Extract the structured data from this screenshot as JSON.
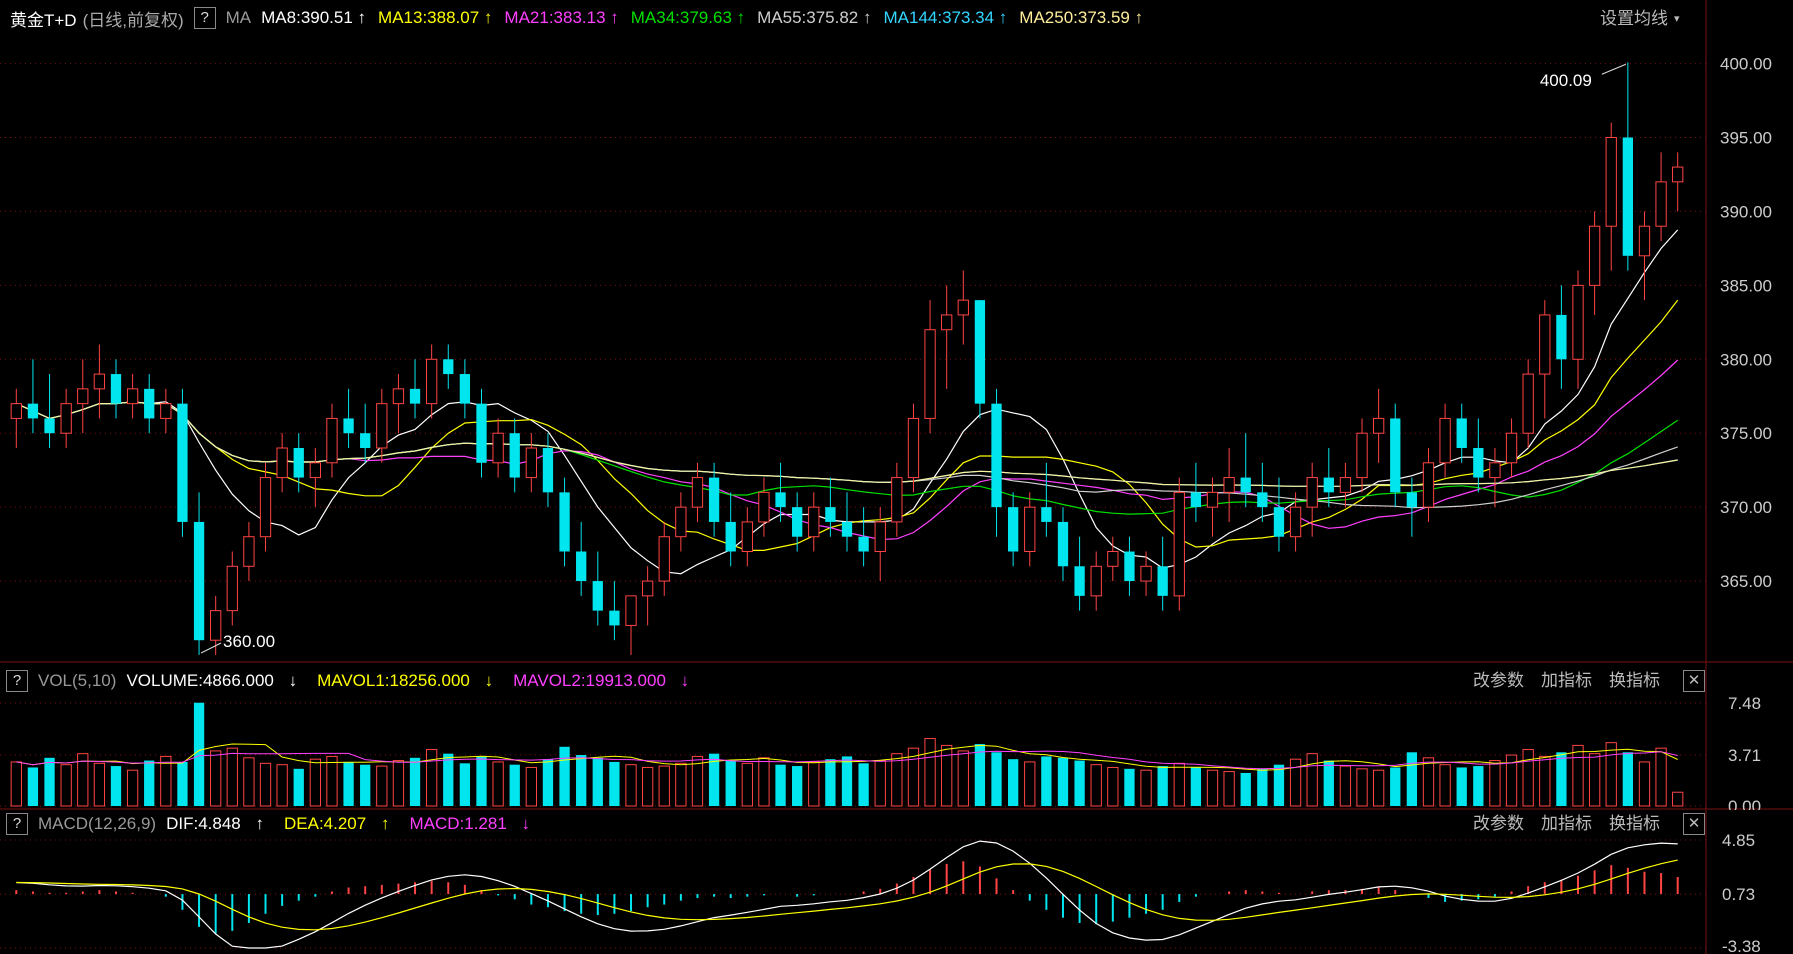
{
  "title": "黄金T+D",
  "subtitle": "(日线,前复权)",
  "ma_label": "MA",
  "ma_values": [
    {
      "name": "MA8",
      "value": "390.51",
      "arrow": "↑",
      "color": "#ffffff"
    },
    {
      "name": "MA13",
      "value": "388.07",
      "arrow": "↑",
      "color": "#ffff00"
    },
    {
      "name": "MA21",
      "value": "383.13",
      "arrow": "↑",
      "color": "#ff40ff"
    },
    {
      "name": "MA34",
      "value": "379.63",
      "arrow": "↑",
      "color": "#00e000"
    },
    {
      "name": "MA55",
      "value": "375.82",
      "arrow": "↑",
      "color": "#cfcfcf"
    },
    {
      "name": "MA144",
      "value": "373.34",
      "arrow": "↑",
      "color": "#33d6ff"
    },
    {
      "name": "MA250",
      "value": "373.59",
      "arrow": "↑",
      "color": "#ffef99"
    }
  ],
  "settings_label": "设置均线",
  "help_icon": "?",
  "vol_header": {
    "label": "VOL(5,10)",
    "volume": "VOLUME:4866.000",
    "vol_arrow": "↓",
    "mavol1": "MAVOL1:18256.000",
    "mavol1_arrow": "↓",
    "mavol2": "MAVOL2:19913.000",
    "mavol2_arrow": "↓"
  },
  "macd_header": {
    "label": "MACD(12,26,9)",
    "dif": "DIF:4.848",
    "dif_arrow": "↑",
    "dea": "DEA:4.207",
    "dea_arrow": "↑",
    "macd": "MACD:1.281",
    "macd_arrow": "↓"
  },
  "buttons": {
    "params": "改参数",
    "add": "加指标",
    "switch": "换指标",
    "close": "✕"
  },
  "colors": {
    "up": "#ff4444",
    "down": "#00e5ee",
    "background": "#000000",
    "grid": "#7a1111"
  },
  "chart_data": [
    {
      "type": "candlestick",
      "ylim": [
        360,
        402
      ],
      "yticks": [
        "400.00",
        "395.00",
        "390.00",
        "385.00",
        "380.00",
        "375.00",
        "370.00",
        "365.00"
      ],
      "annotations": [
        {
          "text": "400.09",
          "kind": "high"
        },
        {
          "text": "360.00",
          "kind": "low"
        }
      ],
      "ohlc": [
        [
          376,
          378,
          374,
          377
        ],
        [
          377,
          380,
          375,
          376
        ],
        [
          376,
          379,
          374,
          375
        ],
        [
          375,
          378,
          374,
          377
        ],
        [
          377,
          380,
          375,
          378
        ],
        [
          378,
          381,
          376,
          379
        ],
        [
          379,
          380,
          376,
          377
        ],
        [
          377,
          379,
          376,
          378
        ],
        [
          378,
          379,
          375,
          376
        ],
        [
          376,
          378,
          375,
          377
        ],
        [
          377,
          378,
          368,
          369
        ],
        [
          369,
          371,
          360,
          361
        ],
        [
          361,
          364,
          360,
          363
        ],
        [
          363,
          367,
          362,
          366
        ],
        [
          366,
          369,
          365,
          368
        ],
        [
          368,
          373,
          367,
          372
        ],
        [
          372,
          375,
          371,
          374
        ],
        [
          374,
          375,
          371,
          372
        ],
        [
          372,
          374,
          370,
          373
        ],
        [
          373,
          377,
          372,
          376
        ],
        [
          376,
          378,
          374,
          375
        ],
        [
          375,
          377,
          373,
          374
        ],
        [
          374,
          378,
          373,
          377
        ],
        [
          377,
          379,
          375,
          378
        ],
        [
          378,
          380,
          376,
          377
        ],
        [
          377,
          381,
          376,
          380
        ],
        [
          380,
          381,
          378,
          379
        ],
        [
          379,
          380,
          376,
          377
        ],
        [
          377,
          378,
          372,
          373
        ],
        [
          373,
          376,
          372,
          375
        ],
        [
          375,
          376,
          371,
          372
        ],
        [
          372,
          375,
          371,
          374
        ],
        [
          374,
          375,
          370,
          371
        ],
        [
          371,
          372,
          366,
          367
        ],
        [
          367,
          369,
          364,
          365
        ],
        [
          365,
          367,
          362,
          363
        ],
        [
          363,
          365,
          361,
          362
        ],
        [
          362,
          364,
          360,
          364
        ],
        [
          364,
          366,
          362,
          365
        ],
        [
          365,
          369,
          364,
          368
        ],
        [
          368,
          371,
          367,
          370
        ],
        [
          370,
          373,
          369,
          372
        ],
        [
          372,
          373,
          368,
          369
        ],
        [
          369,
          371,
          366,
          367
        ],
        [
          367,
          370,
          366,
          369
        ],
        [
          369,
          372,
          368,
          371
        ],
        [
          371,
          373,
          369,
          370
        ],
        [
          370,
          371,
          367,
          368
        ],
        [
          368,
          371,
          367,
          370
        ],
        [
          370,
          372,
          368,
          369
        ],
        [
          369,
          371,
          367,
          368
        ],
        [
          368,
          370,
          366,
          367
        ],
        [
          367,
          370,
          365,
          369
        ],
        [
          369,
          373,
          368,
          372
        ],
        [
          372,
          377,
          371,
          376
        ],
        [
          376,
          384,
          375,
          382
        ],
        [
          382,
          385,
          378,
          383
        ],
        [
          383,
          386,
          381,
          384
        ],
        [
          384,
          384,
          376,
          377
        ],
        [
          377,
          378,
          368,
          370
        ],
        [
          370,
          371,
          366,
          367
        ],
        [
          367,
          371,
          366,
          370
        ],
        [
          370,
          373,
          368,
          369
        ],
        [
          369,
          370,
          365,
          366
        ],
        [
          366,
          368,
          363,
          364
        ],
        [
          364,
          367,
          363,
          366
        ],
        [
          366,
          368,
          365,
          367
        ],
        [
          367,
          368,
          364,
          365
        ],
        [
          365,
          367,
          364,
          366
        ],
        [
          366,
          368,
          363,
          364
        ],
        [
          364,
          372,
          363,
          371
        ],
        [
          371,
          373,
          369,
          370
        ],
        [
          370,
          372,
          368,
          371
        ],
        [
          371,
          374,
          369,
          372
        ],
        [
          372,
          375,
          370,
          371
        ],
        [
          371,
          373,
          369,
          370
        ],
        [
          370,
          372,
          367,
          368
        ],
        [
          368,
          371,
          367,
          370
        ],
        [
          370,
          373,
          368,
          372
        ],
        [
          372,
          374,
          370,
          371
        ],
        [
          371,
          373,
          370,
          372
        ],
        [
          372,
          376,
          371,
          375
        ],
        [
          375,
          378,
          373,
          376
        ],
        [
          376,
          377,
          370,
          371
        ],
        [
          371,
          372,
          368,
          370
        ],
        [
          370,
          374,
          369,
          373
        ],
        [
          373,
          377,
          372,
          376
        ],
        [
          376,
          377,
          373,
          374
        ],
        [
          374,
          376,
          371,
          372
        ],
        [
          372,
          374,
          370,
          373
        ],
        [
          373,
          376,
          372,
          375
        ],
        [
          375,
          380,
          374,
          379
        ],
        [
          379,
          384,
          376,
          383
        ],
        [
          383,
          385,
          378,
          380
        ],
        [
          380,
          386,
          378,
          385
        ],
        [
          385,
          390,
          383,
          389
        ],
        [
          389,
          396,
          386,
          395
        ],
        [
          395,
          400.09,
          386,
          387
        ],
        [
          387,
          390,
          384,
          389
        ],
        [
          389,
          394,
          388,
          392
        ],
        [
          392,
          394,
          390,
          393
        ]
      ]
    },
    {
      "type": "bar",
      "name": "VOLUME",
      "yticks": [
        "7.48",
        "3.71",
        "0.00"
      ],
      "values": [
        3.2,
        2.8,
        3.5,
        3.0,
        3.8,
        3.1,
        2.9,
        2.6,
        3.3,
        3.6,
        3.2,
        7.5,
        4.0,
        4.2,
        3.5,
        3.1,
        3.0,
        2.7,
        3.4,
        3.6,
        3.2,
        3.0,
        2.9,
        3.3,
        3.5,
        4.1,
        3.8,
        3.1,
        3.6,
        3.2,
        3.0,
        2.8,
        3.4,
        4.3,
        3.7,
        3.5,
        3.2,
        3.0,
        2.8,
        2.9,
        3.1,
        3.6,
        3.8,
        3.3,
        3.1,
        3.5,
        3.0,
        2.9,
        3.2,
        3.4,
        3.6,
        3.1,
        3.3,
        3.8,
        4.2,
        4.9,
        4.4,
        4.0,
        4.5,
        3.9,
        3.4,
        3.2,
        3.6,
        3.5,
        3.3,
        3.0,
        2.8,
        2.7,
        2.6,
        2.9,
        3.1,
        2.8,
        2.6,
        2.5,
        2.4,
        2.7,
        3.0,
        3.4,
        3.8,
        3.3,
        2.9,
        2.7,
        2.6,
        2.8,
        3.9,
        3.5,
        3.0,
        2.8,
        2.9,
        3.3,
        3.7,
        4.1,
        3.6,
        3.9,
        4.4,
        3.8,
        4.6,
        3.9,
        3.2,
        4.2,
        1.0
      ]
    },
    {
      "type": "bar",
      "name": "MACD",
      "yticks": [
        "4.85",
        "0.73",
        "-3.38"
      ],
      "values": [
        0.3,
        0.2,
        0.1,
        0.1,
        0.2,
        0.3,
        0.2,
        0.1,
        0.0,
        -0.2,
        -1.2,
        -2.5,
        -3.0,
        -2.8,
        -2.2,
        -1.5,
        -0.9,
        -0.5,
        -0.2,
        0.2,
        0.5,
        0.6,
        0.7,
        0.8,
        0.9,
        1.0,
        0.9,
        0.7,
        0.3,
        -0.1,
        -0.4,
        -0.8,
        -1.0,
        -1.3,
        -1.5,
        -1.6,
        -1.5,
        -1.3,
        -1.0,
        -0.8,
        -0.5,
        -0.3,
        -0.2,
        -0.3,
        -0.2,
        -0.1,
        0.0,
        -0.2,
        -0.1,
        0.0,
        0.0,
        0.2,
        0.4,
        0.8,
        1.3,
        1.9,
        2.3,
        2.5,
        2.1,
        1.2,
        0.3,
        -0.5,
        -1.2,
        -1.8,
        -2.2,
        -2.3,
        -2.1,
        -1.8,
        -1.5,
        -1.2,
        -0.6,
        -0.2,
        0.0,
        0.2,
        0.3,
        0.2,
        0.1,
        0.0,
        0.2,
        0.3,
        0.3,
        0.4,
        0.5,
        0.3,
        0.0,
        -0.3,
        -0.6,
        -0.5,
        -0.4,
        -0.2,
        0.2,
        0.6,
        0.9,
        1.1,
        1.4,
        1.8,
        2.2,
        2.0,
        1.7,
        1.6,
        1.3
      ]
    }
  ]
}
